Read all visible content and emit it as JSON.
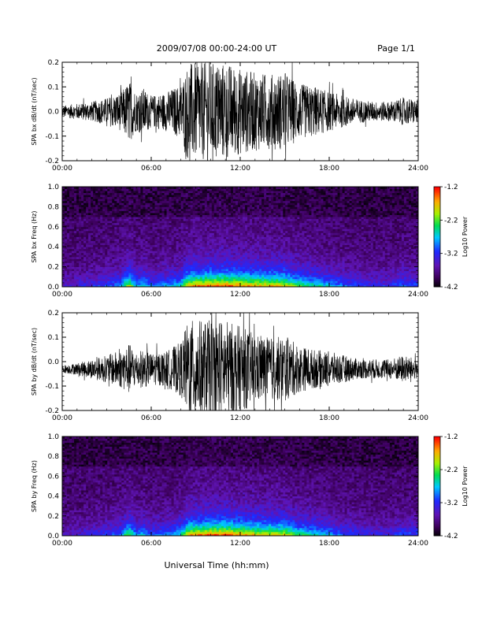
{
  "header": {
    "date_range": "2009/07/08  00:00-24:00 UT",
    "page": "Page 1/1"
  },
  "footer": {
    "xlabel": "Universal Time (hh:mm)"
  },
  "colorbar": {
    "label": "Log10 Power",
    "ticks": [
      "-1.2",
      "-2.2",
      "-3.2",
      "-4.2"
    ],
    "range": [
      -4.2,
      -1.2
    ]
  },
  "chart_data": [
    {
      "type": "line",
      "ylabel": "SPA bx dB/dt (nT/sec)",
      "xlim": [
        0,
        24
      ],
      "ylim": [
        -0.2,
        0.2
      ],
      "x_ticks": [
        "00:00",
        "06:00",
        "12:00",
        "18:00",
        "24:00"
      ],
      "y_ticks": [
        "0.2",
        "0.1",
        "0.0",
        "-0.1",
        "-0.2"
      ],
      "baseline": 0.0,
      "envelope": {
        "hours": [
          0,
          1,
          2,
          3,
          4,
          4.5,
          5,
          5.5,
          6,
          7,
          8,
          8.5,
          9,
          10,
          11,
          12,
          13,
          14,
          15,
          16,
          17,
          18,
          19,
          20,
          21,
          22,
          23,
          24
        ],
        "amplitude": [
          0.03,
          0.04,
          0.05,
          0.07,
          0.1,
          0.16,
          0.1,
          0.12,
          0.08,
          0.1,
          0.14,
          0.25,
          0.25,
          0.25,
          0.25,
          0.22,
          0.2,
          0.19,
          0.2,
          0.14,
          0.13,
          0.1,
          0.08,
          0.06,
          0.05,
          0.05,
          0.07,
          0.06
        ]
      }
    },
    {
      "type": "heatmap",
      "ylabel": "SPA bx Freq (Hz)",
      "xlim": [
        0,
        24
      ],
      "ylim": [
        0,
        1.0
      ],
      "x_ticks": [
        "00:00",
        "06:00",
        "12:00",
        "18:00",
        "24:00"
      ],
      "y_ticks": [
        "1.0",
        "0.8",
        "0.6",
        "0.4",
        "0.2",
        "0.0"
      ],
      "color_range": [
        -4.2,
        -1.2
      ],
      "activity": {
        "hours": [
          0,
          1,
          2,
          3,
          4,
          4.5,
          5,
          5.5,
          6,
          7,
          8,
          8.5,
          9,
          10,
          11,
          12,
          13,
          14,
          15,
          16,
          17,
          18,
          19,
          20,
          21,
          22,
          23,
          24
        ],
        "level": [
          0.15,
          0.2,
          0.25,
          0.3,
          0.4,
          0.8,
          0.4,
          0.5,
          0.35,
          0.4,
          0.5,
          0.85,
          0.9,
          0.95,
          0.95,
          0.9,
          0.85,
          0.85,
          0.8,
          0.6,
          0.55,
          0.45,
          0.35,
          0.3,
          0.25,
          0.25,
          0.35,
          0.3
        ]
      }
    },
    {
      "type": "line",
      "ylabel": "SPA by dB/dt (nT/sec)",
      "xlim": [
        0,
        24
      ],
      "ylim": [
        -0.2,
        0.2
      ],
      "x_ticks": [
        "00:00",
        "06:00",
        "12:00",
        "18:00",
        "24:00"
      ],
      "y_ticks": [
        "0.2",
        "0.1",
        "0.0",
        "-0.1",
        "-0.2"
      ],
      "baseline": -0.03,
      "envelope": {
        "hours": [
          0,
          1,
          2,
          3,
          4,
          4.5,
          5,
          5.5,
          6,
          7,
          8,
          8.5,
          9,
          10,
          11,
          12,
          13,
          14,
          15,
          16,
          17,
          18,
          19,
          20,
          21,
          22,
          23,
          24
        ],
        "amplitude": [
          0.02,
          0.03,
          0.05,
          0.07,
          0.1,
          0.13,
          0.09,
          0.1,
          0.08,
          0.09,
          0.14,
          0.25,
          0.25,
          0.25,
          0.25,
          0.22,
          0.18,
          0.16,
          0.17,
          0.12,
          0.1,
          0.09,
          0.07,
          0.05,
          0.05,
          0.05,
          0.07,
          0.05
        ]
      }
    },
    {
      "type": "heatmap",
      "ylabel": "SPA by Freq (Hz)",
      "xlim": [
        0,
        24
      ],
      "ylim": [
        0,
        1.0
      ],
      "x_ticks": [
        "00:00",
        "06:00",
        "12:00",
        "18:00",
        "24:00"
      ],
      "y_ticks": [
        "1.0",
        "0.8",
        "0.6",
        "0.4",
        "0.2",
        "0.0"
      ],
      "color_range": [
        -4.2,
        -1.2
      ],
      "activity": {
        "hours": [
          0,
          1,
          2,
          3,
          4,
          4.5,
          5,
          5.5,
          6,
          7,
          8,
          8.5,
          9,
          10,
          11,
          12,
          13,
          14,
          15,
          16,
          17,
          18,
          19,
          20,
          21,
          22,
          23,
          24
        ],
        "level": [
          0.12,
          0.18,
          0.22,
          0.28,
          0.38,
          0.7,
          0.38,
          0.45,
          0.32,
          0.38,
          0.5,
          0.85,
          0.9,
          0.95,
          0.95,
          0.88,
          0.82,
          0.8,
          0.78,
          0.58,
          0.52,
          0.42,
          0.32,
          0.28,
          0.22,
          0.22,
          0.32,
          0.28
        ]
      }
    }
  ]
}
